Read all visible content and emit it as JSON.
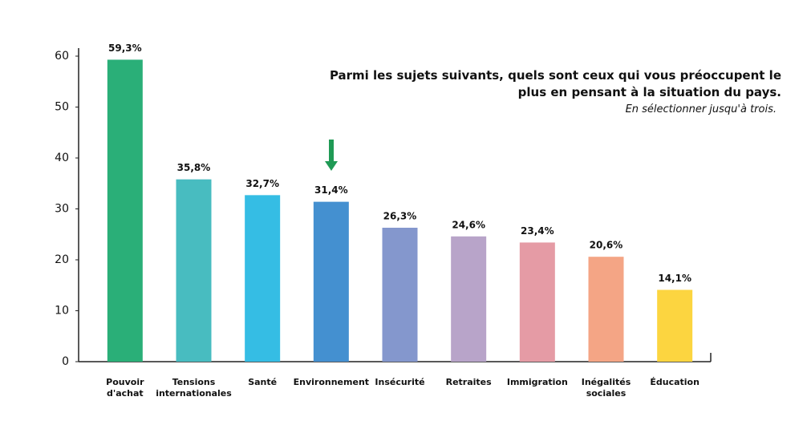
{
  "chart_data": {
    "type": "bar",
    "title": "Parmi les sujets suivants, quels sont ceux qui vous préoccupent le plus en pensant à la situation du pays.",
    "subtitle": "En sélectionner jusqu'à trois.",
    "categories": [
      "Pouvoir d'achat",
      "Tensions internationales",
      "Santé",
      "Environnement",
      "Insécurité",
      "Retraites",
      "Immigration",
      "Inégalités sociales",
      "Éducation"
    ],
    "values": [
      59.3,
      35.8,
      32.7,
      31.4,
      26.3,
      24.6,
      23.4,
      20.6,
      14.1
    ],
    "value_labels": [
      "59,3%",
      "35,8%",
      "32,7%",
      "31,4%",
      "26,3%",
      "24,6%",
      "23,4%",
      "20,6%",
      "14,1%"
    ],
    "colors": [
      "#2aaf78",
      "#48bcc0",
      "#35bde4",
      "#4490d0",
      "#8497cd",
      "#b8a4c9",
      "#e59ba5",
      "#f4a585",
      "#fcd540"
    ],
    "ylim": [
      0,
      60
    ],
    "yticks": [
      0,
      10,
      20,
      30,
      40,
      50,
      60
    ],
    "grid": false
  }
}
